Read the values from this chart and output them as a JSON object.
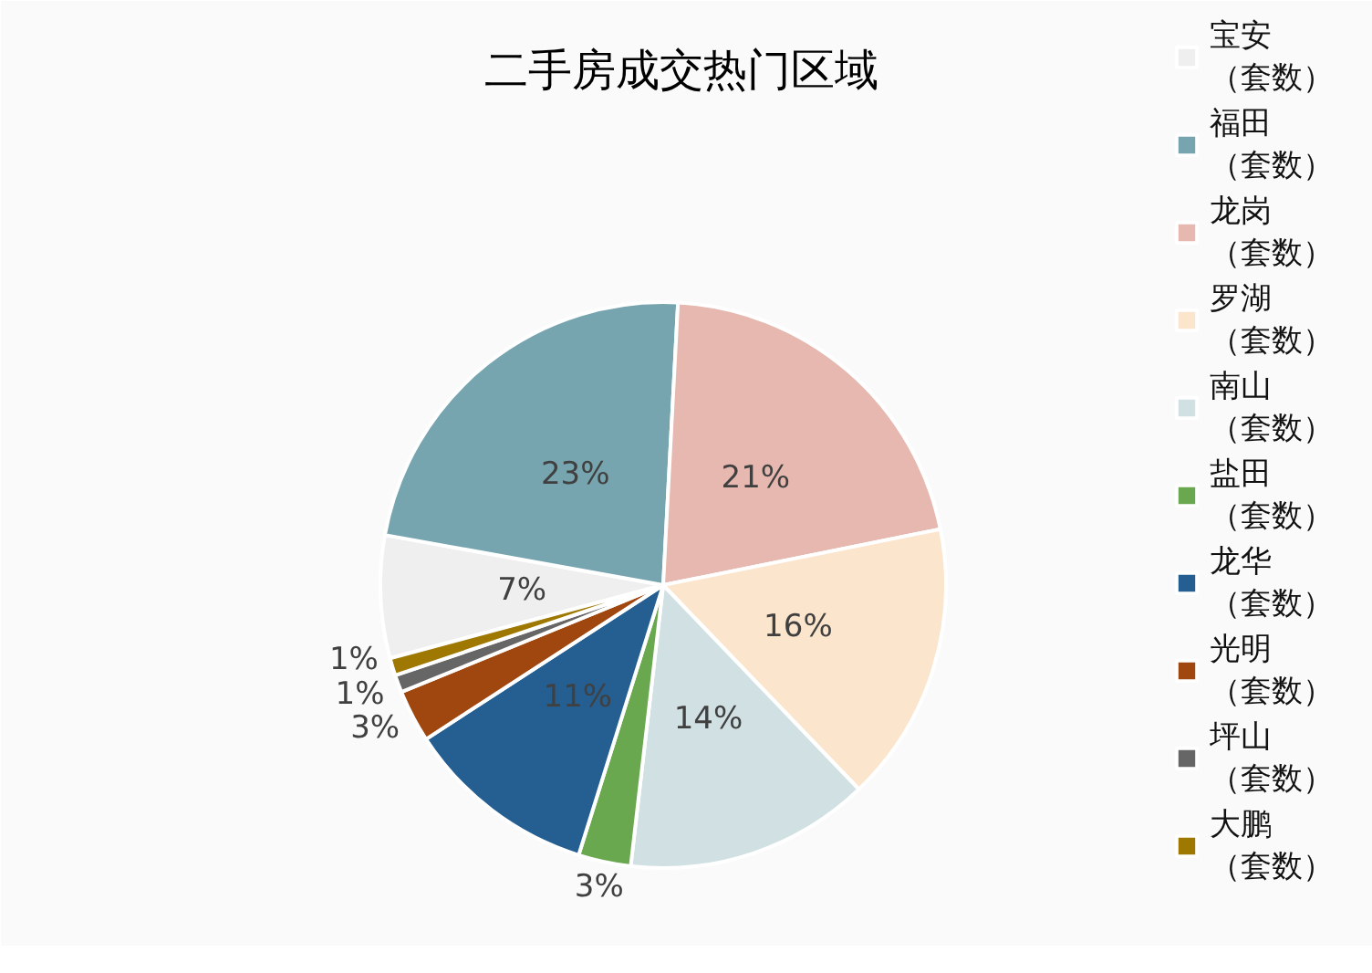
{
  "chart_data": {
    "type": "pie",
    "title": "二手房成交热门区域",
    "categories": [
      "宝安（套数）",
      "福田（套数）",
      "龙岗（套数）",
      "罗湖（套数）",
      "南山（套数）",
      "盐田（套数）",
      "龙华（套数）",
      "光明（套数）",
      "坪山（套数）",
      "大鹏（套数）"
    ],
    "values": [
      7,
      23,
      21,
      16,
      14,
      3,
      11,
      3,
      1,
      1
    ],
    "colors": [
      "#efefef",
      "#76a5af",
      "#e6b8af",
      "#fce5cd",
      "#d0e0e3",
      "#6aa84f",
      "#255e91",
      "#a0460f",
      "#666666",
      "#9e7800"
    ],
    "value_labels": [
      "7%",
      "23%",
      "21%",
      "16%",
      "14%",
      "3%",
      "11%",
      "3%",
      "1%",
      "1%"
    ],
    "legend": "right"
  }
}
